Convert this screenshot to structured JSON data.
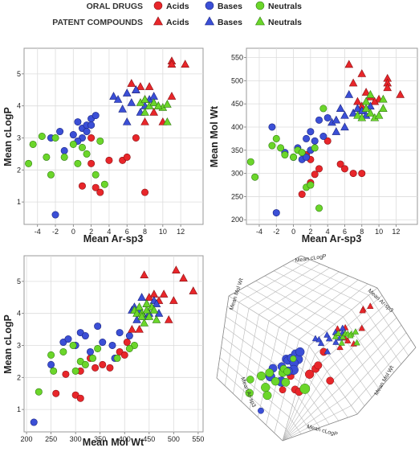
{
  "legend": {
    "row1_title": "ORAL DRUGS",
    "row2_title": "PATENT COMPOUNDS",
    "items": [
      "Acids",
      "Bases",
      "Neutrals"
    ],
    "colors": {
      "acids": "#e8262a",
      "bases": "#3b4fd6",
      "neutrals": "#6bd62a"
    },
    "row1_marker": "circle",
    "row2_marker": "triangle"
  },
  "chart_data": [
    {
      "type": "scatter",
      "xlabel": "Mean Ar-sp3",
      "ylabel": "Mean cLogP",
      "xlim": [
        -5.5,
        14.5
      ],
      "ylim": [
        0.3,
        5.8
      ],
      "xticks": [
        "-4",
        "-2",
        "0",
        "2",
        "4",
        "6",
        "8",
        "10",
        "12"
      ],
      "yticks": [
        "1",
        "2",
        "3",
        "4",
        "5"
      ],
      "oral": {
        "acids": [
          [
            1,
            1.5
          ],
          [
            2,
            2.2
          ],
          [
            2.5,
            1.45
          ],
          [
            3,
            1.3
          ],
          [
            4,
            2.3
          ],
          [
            5.5,
            2.3
          ],
          [
            6,
            2.4
          ],
          [
            7,
            3
          ],
          [
            8,
            1.3
          ],
          [
            2,
            3
          ]
        ],
        "bases": [
          [
            -2,
            0.6
          ],
          [
            -2.5,
            3
          ],
          [
            -1.5,
            3.2
          ],
          [
            0,
            3.1
          ],
          [
            0.5,
            3.5
          ],
          [
            1,
            3.3
          ],
          [
            1.5,
            3.4
          ],
          [
            2,
            3.6
          ],
          [
            2,
            3.4
          ],
          [
            1.5,
            3.2
          ],
          [
            1,
            3
          ],
          [
            2.5,
            3.7
          ],
          [
            -1,
            2.6
          ],
          [
            0.5,
            2.9
          ]
        ],
        "neutrals": [
          [
            -5,
            2.2
          ],
          [
            -4.5,
            2.8
          ],
          [
            -3.5,
            3.05
          ],
          [
            -3,
            2.4
          ],
          [
            -2.5,
            1.85
          ],
          [
            -2,
            3
          ],
          [
            -1,
            2.4
          ],
          [
            0,
            2.8
          ],
          [
            0.5,
            2.2
          ],
          [
            1,
            2.7
          ],
          [
            1.5,
            2.5
          ],
          [
            3,
            2.9
          ],
          [
            3.5,
            1.55
          ],
          [
            2.5,
            1.85
          ]
        ]
      },
      "patent": {
        "acids": [
          [
            6.5,
            4.7
          ],
          [
            7,
            4.5
          ],
          [
            8,
            4.2
          ],
          [
            8.5,
            4.6
          ],
          [
            9,
            3.8
          ],
          [
            10,
            3.5
          ],
          [
            11,
            5.4
          ],
          [
            11,
            5.3
          ],
          [
            12.5,
            5.3
          ],
          [
            11,
            4.3
          ],
          [
            8,
            3.5
          ],
          [
            7.5,
            4.6
          ]
        ],
        "bases": [
          [
            4.5,
            4.3
          ],
          [
            5,
            4.2
          ],
          [
            6,
            4.4
          ],
          [
            6.5,
            4.1
          ],
          [
            7,
            4.5
          ],
          [
            7.5,
            3.8
          ],
          [
            8,
            4
          ],
          [
            8.5,
            4.2
          ],
          [
            9,
            4.1
          ],
          [
            6,
            3.5
          ],
          [
            5.5,
            3.9
          ],
          [
            9,
            4.3
          ]
        ],
        "neutrals": [
          [
            7.5,
            4.1
          ],
          [
            8,
            4.2
          ],
          [
            8.5,
            4
          ],
          [
            9,
            4.1
          ],
          [
            9.5,
            4
          ],
          [
            10,
            3.95
          ],
          [
            10.5,
            4.05
          ],
          [
            10.5,
            3.5
          ],
          [
            8,
            3.8
          ],
          [
            9.5,
            4
          ]
        ]
      }
    },
    {
      "type": "scatter",
      "xlabel": "Mean Ar-sp3",
      "ylabel": "Mean Mol Wt",
      "xlim": [
        -5.5,
        14.5
      ],
      "ylim": [
        190,
        570
      ],
      "xticks": [
        "-4",
        "-2",
        "0",
        "2",
        "4",
        "6",
        "8",
        "10",
        "12"
      ],
      "yticks": [
        "200",
        "250",
        "300",
        "350",
        "400",
        "450",
        "500",
        "550"
      ],
      "oral": {
        "acids": [
          [
            1,
            255
          ],
          [
            2,
            280
          ],
          [
            2.5,
            298
          ],
          [
            3,
            310
          ],
          [
            4,
            370
          ],
          [
            5.5,
            320
          ],
          [
            6,
            310
          ],
          [
            7,
            300
          ],
          [
            8,
            300
          ],
          [
            2,
            330
          ],
          [
            1.5,
            340
          ]
        ],
        "bases": [
          [
            -2,
            215
          ],
          [
            -2.5,
            400
          ],
          [
            -1,
            345
          ],
          [
            0,
            335
          ],
          [
            0.5,
            355
          ],
          [
            1,
            330
          ],
          [
            1.5,
            335
          ],
          [
            2,
            350
          ],
          [
            2,
            390
          ],
          [
            1.5,
            375
          ],
          [
            3,
            415
          ],
          [
            2.5,
            370
          ],
          [
            4,
            420
          ],
          [
            3.5,
            380
          ]
        ],
        "neutrals": [
          [
            -5,
            325
          ],
          [
            -4.5,
            292
          ],
          [
            -2.5,
            360
          ],
          [
            -2,
            375
          ],
          [
            -1.5,
            355
          ],
          [
            -1,
            340
          ],
          [
            0,
            335
          ],
          [
            0.5,
            350
          ],
          [
            1,
            345
          ],
          [
            1.5,
            270
          ],
          [
            2,
            275
          ],
          [
            3,
            225
          ],
          [
            2.5,
            355
          ],
          [
            3.5,
            440
          ]
        ]
      },
      "patent": {
        "acids": [
          [
            6.5,
            535
          ],
          [
            7,
            495
          ],
          [
            8,
            515
          ],
          [
            8.5,
            475
          ],
          [
            9,
            465
          ],
          [
            10,
            460
          ],
          [
            11,
            505
          ],
          [
            11,
            495
          ],
          [
            12.5,
            470
          ],
          [
            11,
            485
          ],
          [
            8,
            445
          ],
          [
            7.5,
            455
          ],
          [
            9.5,
            455
          ]
        ],
        "bases": [
          [
            4.5,
            410
          ],
          [
            5,
            415
          ],
          [
            5.5,
            440
          ],
          [
            6,
            425
          ],
          [
            6.5,
            470
          ],
          [
            7,
            430
          ],
          [
            7.5,
            440
          ],
          [
            8,
            435
          ],
          [
            8.5,
            425
          ],
          [
            9,
            445
          ],
          [
            6,
            400
          ],
          [
            5,
            390
          ]
        ],
        "neutrals": [
          [
            7.5,
            425
          ],
          [
            8,
            420
          ],
          [
            8.5,
            440
          ],
          [
            9,
            430
          ],
          [
            9.5,
            420
          ],
          [
            10,
            425
          ],
          [
            10.5,
            440
          ],
          [
            10.5,
            460
          ],
          [
            9,
            470
          ],
          [
            8.5,
            455
          ]
        ]
      }
    },
    {
      "type": "scatter",
      "xlabel": "Mean Mol Wt",
      "ylabel": "Mean cLogP",
      "xlim": [
        195,
        560
      ],
      "ylim": [
        0.3,
        5.8
      ],
      "xticks": [
        "200",
        "250",
        "300",
        "350",
        "400",
        "450",
        "500",
        "550"
      ],
      "yticks": [
        "1",
        "2",
        "3",
        "4",
        "5"
      ],
      "oral": {
        "acids": [
          [
            260,
            1.5
          ],
          [
            280,
            2.1
          ],
          [
            300,
            1.45
          ],
          [
            310,
            1.35
          ],
          [
            340,
            2.3
          ],
          [
            355,
            2.4
          ],
          [
            370,
            2.3
          ],
          [
            390,
            2.8
          ],
          [
            405,
            3.1
          ],
          [
            310,
            2.2
          ],
          [
            330,
            2.6
          ],
          [
            400,
            2.7
          ]
        ],
        "bases": [
          [
            215,
            0.6
          ],
          [
            250,
            2.4
          ],
          [
            275,
            3.1
          ],
          [
            285,
            3.2
          ],
          [
            300,
            3
          ],
          [
            310,
            3.4
          ],
          [
            320,
            3.3
          ],
          [
            330,
            2.8
          ],
          [
            345,
            3.6
          ],
          [
            355,
            3.1
          ],
          [
            375,
            3
          ],
          [
            390,
            3.4
          ],
          [
            410,
            3.3
          ],
          [
            380,
            2.6
          ]
        ],
        "neutrals": [
          [
            225,
            1.55
          ],
          [
            250,
            2.7
          ],
          [
            255,
            2.2
          ],
          [
            275,
            2.8
          ],
          [
            295,
            3
          ],
          [
            300,
            2.2
          ],
          [
            310,
            2.5
          ],
          [
            320,
            2.4
          ],
          [
            335,
            2.6
          ],
          [
            345,
            2.9
          ],
          [
            385,
            2.6
          ],
          [
            420,
            3
          ],
          [
            410,
            2.9
          ]
        ]
      },
      "patent": {
        "acids": [
          [
            440,
            5.2
          ],
          [
            460,
            4.6
          ],
          [
            470,
            4.4
          ],
          [
            480,
            4.6
          ],
          [
            490,
            3.8
          ],
          [
            500,
            4.4
          ],
          [
            505,
            5.35
          ],
          [
            520,
            5.1
          ],
          [
            540,
            4.7
          ],
          [
            450,
            4.5
          ],
          [
            430,
            3.5
          ],
          [
            415,
            3.5
          ]
        ],
        "bases": [
          [
            415,
            4.1
          ],
          [
            420,
            4.2
          ],
          [
            425,
            3.8
          ],
          [
            430,
            4.1
          ],
          [
            435,
            4.5
          ],
          [
            440,
            3.9
          ],
          [
            445,
            4.3
          ],
          [
            450,
            4
          ],
          [
            455,
            4.2
          ],
          [
            460,
            4.4
          ],
          [
            465,
            4.3
          ],
          [
            470,
            4
          ]
        ],
        "neutrals": [
          [
            420,
            4.1
          ],
          [
            425,
            4
          ],
          [
            430,
            4.2
          ],
          [
            435,
            4
          ],
          [
            440,
            3.7
          ],
          [
            445,
            4.1
          ],
          [
            450,
            3.9
          ],
          [
            455,
            4.2
          ],
          [
            460,
            4.1
          ],
          [
            465,
            3.8
          ],
          [
            445,
            4.3
          ],
          [
            435,
            3.9
          ]
        ]
      }
    },
    {
      "type": "scatter",
      "subtype": "3d",
      "axis_labels": [
        "Mean cLogP",
        "Mean Ar-sp3",
        "Mean Mol Wt",
        "Mean Mol Wt",
        "Mean Ar-sp3",
        "Mean cLogP"
      ]
    }
  ]
}
